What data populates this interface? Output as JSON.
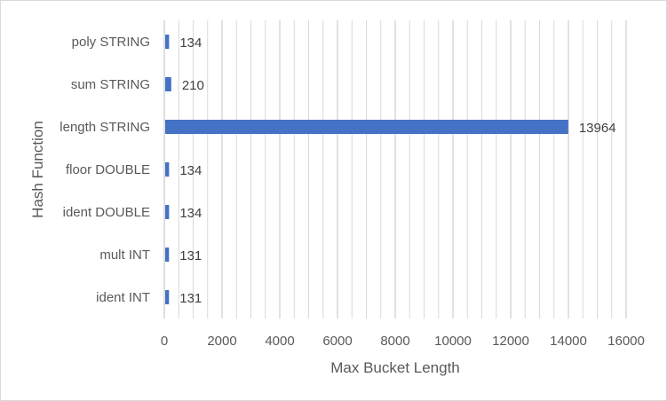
{
  "chart_data": {
    "type": "bar",
    "orientation": "horizontal",
    "title": "",
    "xlabel": "Max Bucket Length",
    "ylabel": "Hash Function",
    "categories": [
      "poly STRING",
      "sum STRING",
      "length STRING",
      "floor DOUBLE",
      "ident DOUBLE",
      "mult INT",
      "ident INT"
    ],
    "values": [
      134,
      210,
      13964,
      134,
      134,
      131,
      131
    ],
    "data_labels": [
      "134",
      "210",
      "13964",
      "134",
      "134",
      "131",
      "131"
    ],
    "xlim": [
      0,
      16000
    ],
    "x_ticks": [
      "0",
      "2000",
      "4000",
      "6000",
      "8000",
      "10000",
      "12000",
      "14000",
      "16000"
    ],
    "grid": "vertical major and minor",
    "legend": "none",
    "bar_color": "#4472c4",
    "grid_color": "#d9d9d9"
  }
}
